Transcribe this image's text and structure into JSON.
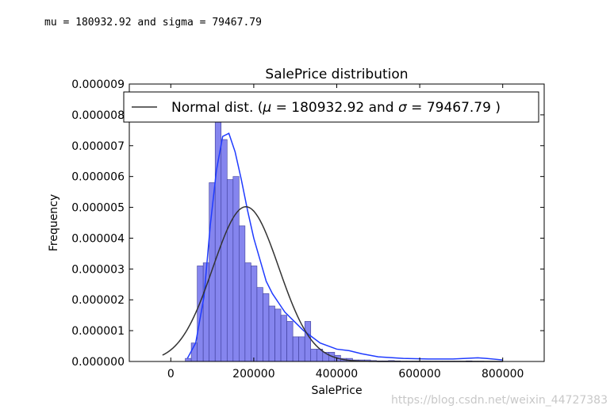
{
  "console_output": "mu = 180932.92 and sigma = 79467.79",
  "watermark": "https://blog.csdn.net/weixin_44727383",
  "chart_data": {
    "type": "bar",
    "title": "SalePrice distribution",
    "xlabel": "SalePrice",
    "ylabel": "Frequency",
    "xlim": [
      -100000,
      900000
    ],
    "ylim": [
      0,
      9e-06
    ],
    "xticks": [
      0,
      200000,
      400000,
      600000,
      800000
    ],
    "xtick_labels": [
      "0",
      "200000",
      "400000",
      "600000",
      "800000"
    ],
    "yticks": [
      0,
      1e-06,
      2e-06,
      3e-06,
      4e-06,
      5e-06,
      6e-06,
      7e-06,
      8e-06,
      9e-06
    ],
    "ytick_labels": [
      "0.000000",
      "0.000001",
      "0.000002",
      "0.000003",
      "0.000004",
      "0.000005",
      "0.000006",
      "0.000007",
      "0.000008",
      "0.000009"
    ],
    "legend": {
      "label": "Normal dist. ($\\mu=$ 180932.92 and $\\sigma=$ 79467.79 )",
      "loc": "top"
    },
    "mu": 180932.92,
    "sigma": 79467.79,
    "histogram": {
      "bin_start": 34900,
      "bin_width": 14402,
      "counts_density": [
        1e-07,
        6e-07,
        3.1e-06,
        3.2e-06,
        5.8e-06,
        7.8e-06,
        7.2e-06,
        5.9e-06,
        6e-06,
        4.4e-06,
        3.2e-06,
        3.1e-06,
        2.4e-06,
        2.2e-06,
        1.8e-06,
        1.7e-06,
        1.5e-06,
        1.3e-06,
        8e-07,
        8e-07,
        1.3e-06,
        4e-07,
        4e-07,
        3e-07,
        3e-07,
        2e-07,
        1e-07,
        1e-07,
        5e-08,
        5e-08,
        5e-08,
        3e-08,
        2e-08,
        2e-08,
        3e-08,
        2e-08,
        1e-08,
        1e-08,
        1e-08,
        1e-08,
        1e-08,
        1e-08,
        1e-08,
        1e-08,
        1e-08,
        1e-08,
        1e-08,
        2e-08,
        1e-08,
        1e-08
      ]
    },
    "kde": {
      "x": [
        40000,
        60000,
        80000,
        95000,
        110000,
        125000,
        140000,
        155000,
        170000,
        185000,
        200000,
        215000,
        230000,
        245000,
        260000,
        275000,
        290000,
        305000,
        320000,
        340000,
        360000,
        380000,
        400000,
        430000,
        460000,
        500000,
        560000,
        620000,
        680000,
        740000,
        760000,
        800000
      ],
      "y": [
        1e-07,
        6e-07,
        2.1e-06,
        4.4e-06,
        6.2e-06,
        7.3e-06,
        7.4e-06,
        6.8e-06,
        5.9e-06,
        4.9e-06,
        4e-06,
        3.3e-06,
        2.6e-06,
        2.2e-06,
        1.9e-06,
        1.6e-06,
        1.4e-06,
        1.2e-06,
        1e-06,
        8e-07,
        6e-07,
        5e-07,
        4e-07,
        3.5e-07,
        2.5e-07,
        1.5e-07,
        1e-07,
        8e-08,
        8e-08,
        1.2e-07,
        1e-07,
        5e-08
      ]
    },
    "colors": {
      "bar_fill": "#8585ee",
      "bar_stroke": "#3c3c9a",
      "kde": "#1f3bff",
      "normal": "#333333"
    }
  }
}
